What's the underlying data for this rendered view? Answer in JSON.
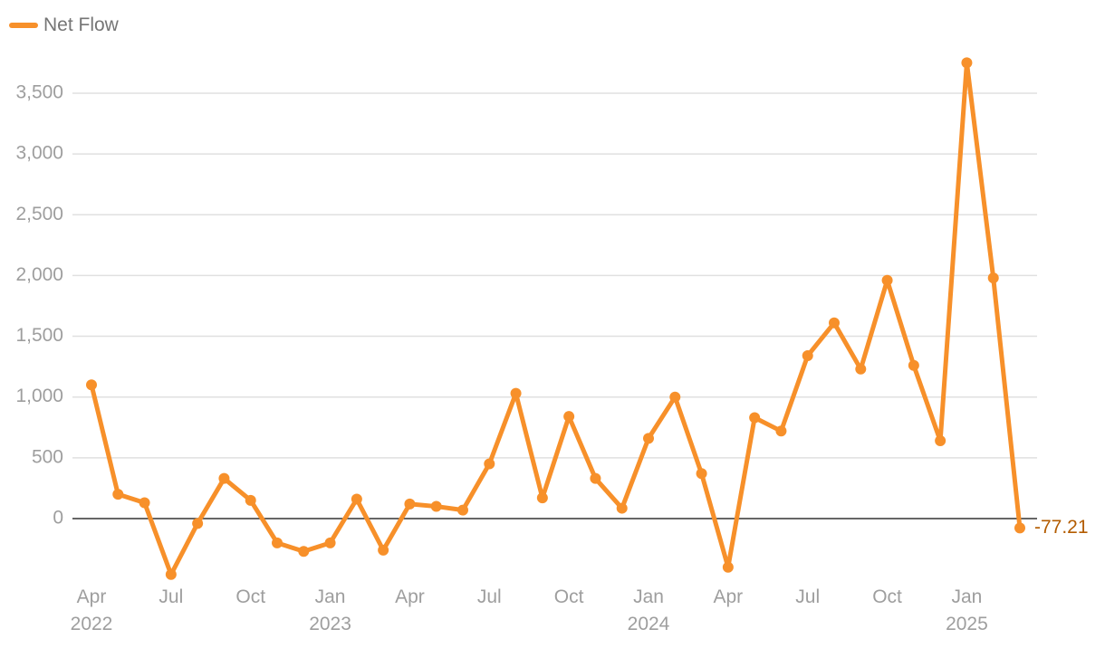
{
  "chart_data": {
    "type": "line",
    "x": [
      "2022-04",
      "2022-05",
      "2022-06",
      "2022-07",
      "2022-08",
      "2022-09",
      "2022-10",
      "2022-11",
      "2022-12",
      "2023-01",
      "2023-02",
      "2023-03",
      "2023-04",
      "2023-05",
      "2023-06",
      "2023-07",
      "2023-08",
      "2023-09",
      "2023-10",
      "2023-11",
      "2023-12",
      "2024-01",
      "2024-02",
      "2024-03",
      "2024-04",
      "2024-05",
      "2024-06",
      "2024-07",
      "2024-08",
      "2024-09",
      "2024-10",
      "2024-11",
      "2024-12",
      "2025-01",
      "2025-02",
      "2025-03"
    ],
    "series": [
      {
        "name": "Net Flow",
        "color": "#f7902a",
        "values": [
          1100,
          200,
          130,
          -460,
          -40,
          330,
          150,
          -200,
          -270,
          -200,
          160,
          -260,
          120,
          100,
          70,
          450,
          1030,
          170,
          840,
          330,
          85,
          660,
          1000,
          370,
          -400,
          830,
          720,
          1340,
          1610,
          1230,
          1960,
          1260,
          640,
          3750,
          1980,
          -77.21
        ]
      }
    ],
    "xticks": [
      {
        "value": "2022-04",
        "label": "Apr\n2022"
      },
      {
        "value": "2022-07",
        "label": "Jul"
      },
      {
        "value": "2022-10",
        "label": "Oct"
      },
      {
        "value": "2023-01",
        "label": "Jan\n2023"
      },
      {
        "value": "2023-04",
        "label": "Apr"
      },
      {
        "value": "2023-07",
        "label": "Jul"
      },
      {
        "value": "2023-10",
        "label": "Oct"
      },
      {
        "value": "2024-01",
        "label": "Jan\n2024"
      },
      {
        "value": "2024-04",
        "label": "Apr"
      },
      {
        "value": "2024-07",
        "label": "Jul"
      },
      {
        "value": "2024-10",
        "label": "Oct"
      },
      {
        "value": "2025-01",
        "label": "Jan\n2025"
      }
    ],
    "ylim": [
      -540,
      3820
    ],
    "yticks": [
      0,
      {
        "value": 500,
        "label": "500"
      },
      {
        "value": 1000,
        "label": "1,000"
      },
      {
        "value": 1500,
        "label": "1,500"
      },
      {
        "value": 2000,
        "label": "2,000"
      },
      {
        "value": 2500,
        "label": "2,500"
      },
      {
        "value": 3000,
        "label": "3,000"
      },
      {
        "value": 3500,
        "label": "3,500"
      }
    ],
    "grid": true,
    "last_value_label": true,
    "last_value_label_color": "#b35c00",
    "legend": "top-left"
  }
}
